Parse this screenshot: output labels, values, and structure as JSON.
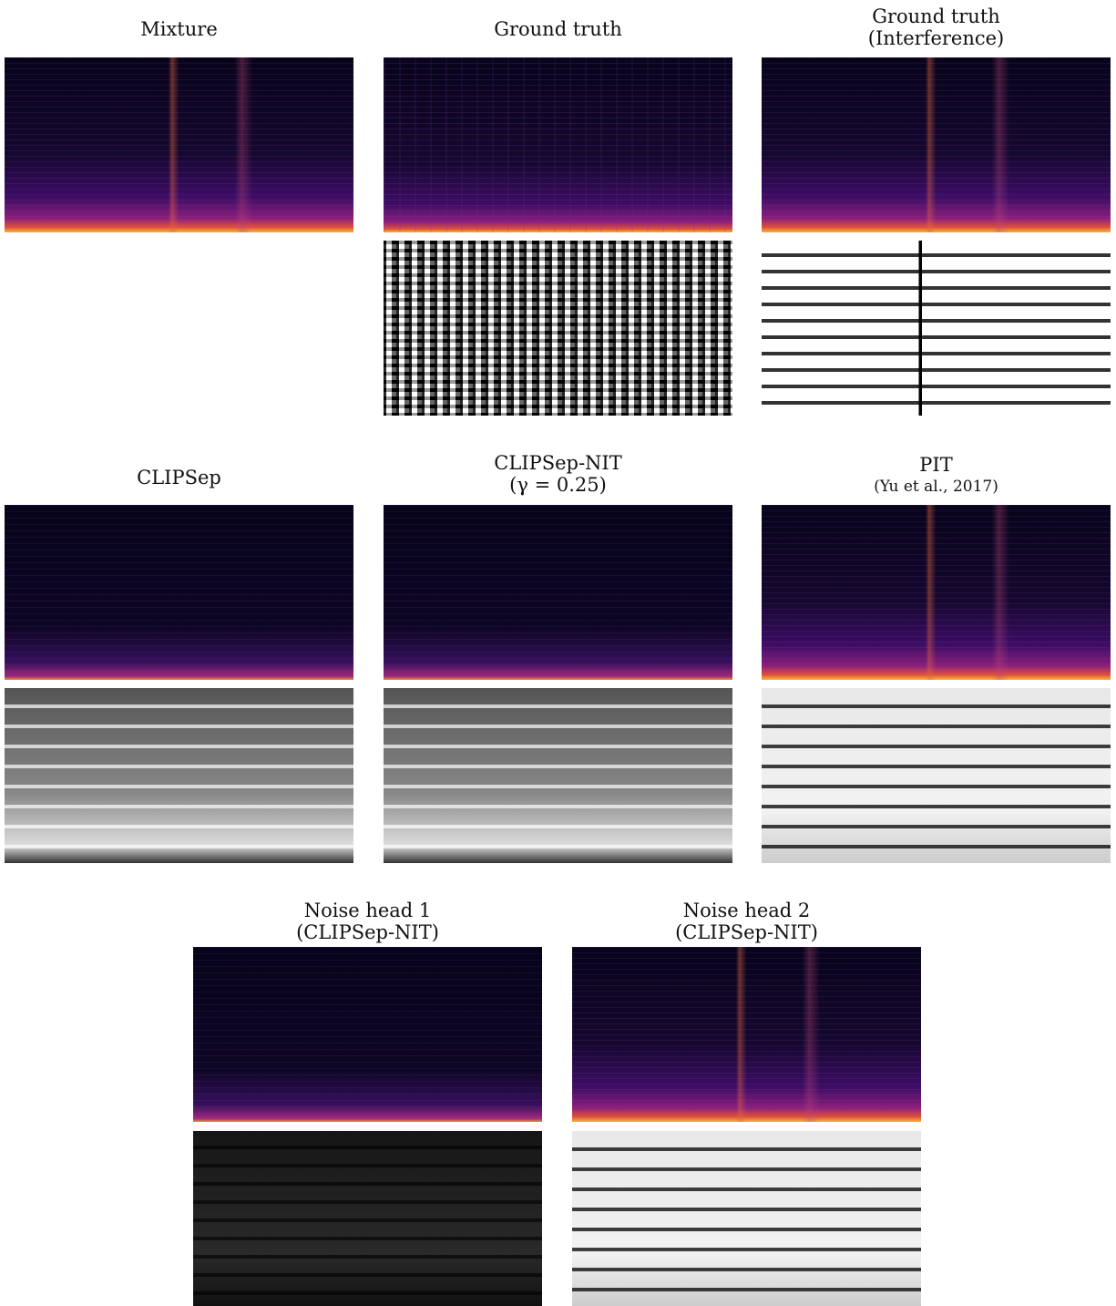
{
  "panels": [
    {
      "title": "Mixture"
    },
    {
      "title": "Ground truth"
    },
    {
      "title": "Ground truth",
      "subtitle": "(Interference)"
    },
    {
      "title": "CLIPSep"
    },
    {
      "title": "CLIPSep-NIT",
      "subtitle": "(γ = 0.25)"
    },
    {
      "title": "PIT",
      "subtitle": "(Yu et al., 2017)"
    },
    {
      "title": "Noise head 1",
      "subtitle": "(CLIPSep-NIT)"
    },
    {
      "title": "Noise head 2",
      "subtitle": "(CLIPSep-NIT)"
    }
  ]
}
